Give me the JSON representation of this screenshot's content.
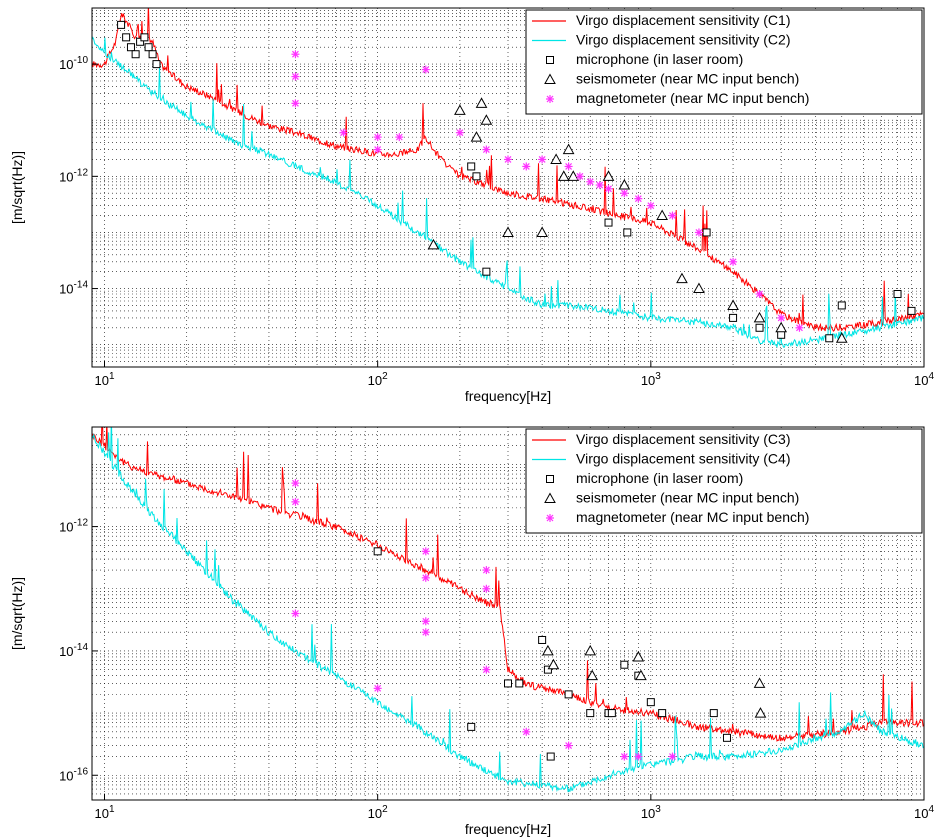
{
  "chart_data": [
    {
      "type": "line",
      "xlabel": "frequency[Hz]",
      "ylabel": "[m/sqrt(Hz)]",
      "xscale": "log",
      "yscale": "log",
      "xlim": [
        9,
        10000
      ],
      "ylim": [
        4e-16,
        1e-09
      ],
      "xticks": [
        10,
        100,
        1000,
        10000
      ],
      "xtick_labels": [
        "10^1",
        "10^2",
        "10^3",
        "10^4"
      ],
      "yticks": [
        1e-14,
        1e-12,
        1e-10
      ],
      "ytick_labels": [
        "10^-14",
        "10^-12",
        "10^-10"
      ],
      "grid": true,
      "legend_position": "top-right",
      "legend": [
        {
          "label": "Virgo displacement sensitivity (C1)",
          "color": "#ff0000",
          "marker": "line"
        },
        {
          "label": "Virgo displacement sensitivity (C2)",
          "color": "#00e5e5",
          "marker": "line"
        },
        {
          "label": "microphone (in laser room)",
          "color": "#000000",
          "marker": "square"
        },
        {
          "label": "seismometer (near MC input bench)",
          "color": "#000000",
          "marker": "triangle"
        },
        {
          "label": "magnetometer (near MC input bench)",
          "color": "#ff33ff",
          "marker": "asterisk"
        }
      ],
      "series": [
        {
          "name": "Virgo displacement sensitivity (C1)",
          "color": "#ff0000",
          "x": [
            9,
            10,
            11,
            11.5,
            12,
            13,
            14,
            15,
            16,
            18,
            20,
            25,
            30,
            40,
            50,
            70,
            100,
            120,
            140,
            150,
            160,
            180,
            200,
            250,
            300,
            400,
            500,
            700,
            1000,
            1500,
            2000,
            2500,
            3000,
            4000,
            5000,
            7000,
            10000
          ],
          "y": [
            1e-10,
            1e-10,
            2.5e-10,
            8e-10,
            6e-10,
            3e-10,
            3e-10,
            2.5e-10,
            1e-10,
            6e-11,
            4e-11,
            2.5e-11,
            1.5e-11,
            8e-12,
            6e-12,
            3.5e-12,
            2.5e-12,
            2.5e-12,
            3e-12,
            5e-12,
            3e-12,
            1.5e-12,
            1e-12,
            7e-13,
            5e-13,
            4e-13,
            3.2e-13,
            2.2e-13,
            1.5e-13,
            5e-14,
            2e-14,
            8e-15,
            3.5e-15,
            2e-15,
            2e-15,
            2.5e-15,
            3.5e-15
          ]
        },
        {
          "name": "Virgo displacement sensitivity (C2)",
          "color": "#00e5e5",
          "x": [
            9,
            10,
            12,
            15,
            20,
            30,
            40,
            50,
            70,
            100,
            150,
            200,
            300,
            400,
            500,
            700,
            1000,
            1500,
            2000,
            2500,
            3000,
            4000,
            5000,
            7000,
            10000
          ],
          "y": [
            3e-10,
            1.5e-10,
            8e-11,
            3e-11,
            1.2e-11,
            4e-12,
            2.5e-12,
            1.5e-12,
            8e-13,
            3e-13,
            8e-14,
            3e-14,
            1e-14,
            5e-15,
            5e-15,
            4e-15,
            3e-15,
            2.5e-15,
            2e-15,
            1.2e-15,
            1e-15,
            1.2e-15,
            1.5e-15,
            2e-15,
            3e-15
          ]
        }
      ],
      "markers": {
        "microphone": {
          "x": [
            11.5,
            12,
            12.5,
            13,
            13.5,
            14,
            14.5,
            15,
            15.5,
            220,
            230,
            250,
            700,
            820,
            1600,
            2000,
            2500,
            3000,
            4500,
            5000,
            8000,
            9000
          ],
          "y": [
            5e-10,
            3e-10,
            2e-10,
            1.5e-10,
            2.5e-10,
            3e-10,
            2e-10,
            1.5e-10,
            1e-10,
            1.5e-12,
            1e-12,
            2e-14,
            1.5e-13,
            1e-13,
            1e-13,
            3e-15,
            2e-15,
            1.5e-15,
            1.3e-15,
            5e-15,
            8e-15,
            4e-15
          ]
        },
        "seismometer": {
          "x": [
            160,
            200,
            230,
            240,
            250,
            300,
            400,
            450,
            480,
            500,
            520,
            700,
            800,
            1100,
            1300,
            1500,
            2000,
            2500,
            3000,
            5000
          ],
          "y": [
            6e-14,
            1.5e-11,
            5e-12,
            2e-11,
            1e-11,
            1e-13,
            1e-13,
            2e-12,
            1e-12,
            3e-12,
            1e-12,
            1e-12,
            7e-13,
            2e-13,
            1.5e-14,
            1e-14,
            5e-15,
            3e-15,
            2e-15,
            1.3e-15
          ]
        },
        "magnetometer": {
          "x": [
            50,
            50,
            50,
            75,
            100,
            100,
            120,
            150,
            200,
            250,
            300,
            350,
            400,
            500,
            550,
            600,
            650,
            700,
            800,
            900,
            1000,
            1200,
            1500,
            2000,
            2500,
            3000,
            3500
          ],
          "y": [
            1.5e-10,
            6e-11,
            2e-11,
            6e-12,
            5e-12,
            3e-12,
            5e-12,
            8e-11,
            6e-12,
            3e-12,
            2e-12,
            1.5e-12,
            2e-12,
            1.5e-12,
            1e-12,
            8e-13,
            7e-13,
            6e-13,
            5e-13,
            4e-13,
            3e-13,
            2e-13,
            1e-13,
            3e-14,
            8e-15,
            3e-15,
            2e-15
          ]
        }
      }
    },
    {
      "type": "line",
      "xlabel": "frequency[Hz]",
      "ylabel": "[m/sqrt(Hz)]",
      "xscale": "log",
      "yscale": "log",
      "xlim": [
        9,
        10000
      ],
      "ylim": [
        4e-17,
        4e-11
      ],
      "xticks": [
        10,
        100,
        1000,
        10000
      ],
      "xtick_labels": [
        "10^1",
        "10^2",
        "10^3",
        "10^4"
      ],
      "yticks": [
        1e-16,
        1e-14,
        1e-12
      ],
      "ytick_labels": [
        "10^-16",
        "10^-14",
        "10^-12"
      ],
      "grid": true,
      "legend_position": "top-right",
      "legend": [
        {
          "label": "Virgo displacement sensitivity (C3)",
          "color": "#ff0000",
          "marker": "line"
        },
        {
          "label": "Virgo displacement sensitivity (C4)",
          "color": "#00e5e5",
          "marker": "line"
        },
        {
          "label": "microphone (in laser room)",
          "color": "#000000",
          "marker": "square"
        },
        {
          "label": "seismometer (near MC input bench)",
          "color": "#000000",
          "marker": "triangle"
        },
        {
          "label": "magnetometer (near MC input bench)",
          "color": "#ff33ff",
          "marker": "asterisk"
        }
      ],
      "series": [
        {
          "name": "Virgo displacement sensitivity (C3)",
          "color": "#ff0000",
          "x": [
            9,
            10,
            12,
            15,
            20,
            30,
            40,
            50,
            70,
            100,
            150,
            200,
            250,
            280,
            300,
            350,
            400,
            500,
            700,
            1000,
            1500,
            2000,
            3000,
            5000,
            7000,
            10000
          ],
          "y": [
            3e-11,
            2e-11,
            1e-11,
            7e-12,
            5e-12,
            3e-12,
            2e-12,
            1.5e-12,
            1e-12,
            5e-13,
            2e-13,
            1e-13,
            6e-14,
            5e-14,
            5e-15,
            3e-15,
            2.5e-15,
            2e-15,
            1.2e-15,
            1e-15,
            6e-16,
            5e-16,
            4e-16,
            5e-16,
            7e-16,
            7e-16
          ]
        },
        {
          "name": "Virgo displacement sensitivity (C4)",
          "color": "#00e5e5",
          "x": [
            9,
            10,
            12,
            15,
            20,
            30,
            40,
            50,
            70,
            100,
            150,
            200,
            250,
            300,
            400,
            500,
            700,
            1000,
            1500,
            2000,
            3000,
            4000,
            5000,
            6000,
            7000,
            10000
          ],
          "y": [
            3e-11,
            1.5e-11,
            5e-12,
            1.5e-12,
            4e-13,
            6e-14,
            2e-14,
            1e-14,
            4e-15,
            1.5e-15,
            5e-16,
            2e-16,
            1.2e-16,
            8e-17,
            7e-17,
            6e-17,
            1e-16,
            1.5e-16,
            2e-16,
            2e-16,
            2.5e-16,
            4e-16,
            5e-16,
            1e-15,
            5e-16,
            3e-16
          ]
        }
      ],
      "markers": {
        "microphone": {
          "x": [
            100,
            220,
            300,
            330,
            400,
            420,
            430,
            500,
            600,
            700,
            720,
            800,
            900,
            1000,
            1100,
            1700,
            1900
          ],
          "y": [
            4e-13,
            6e-16,
            3e-15,
            3e-15,
            1.5e-14,
            5e-15,
            2e-16,
            2e-15,
            1e-15,
            1e-15,
            1e-15,
            6e-15,
            4e-15,
            1.5e-15,
            1e-15,
            1e-15,
            4e-16
          ]
        },
        "seismometer": {
          "x": [
            420,
            440,
            600,
            610,
            900,
            920,
            2500,
            2520
          ],
          "y": [
            1e-14,
            6e-15,
            1e-14,
            4e-15,
            8e-15,
            4e-15,
            3e-15,
            1e-15
          ]
        },
        "magnetometer": {
          "x": [
            50,
            50,
            50,
            100,
            150,
            150,
            150,
            150,
            250,
            250,
            250,
            350,
            500,
            800,
            900,
            1200
          ],
          "y": [
            5e-12,
            2.5e-12,
            4e-14,
            2.5e-15,
            4e-13,
            1.5e-13,
            3e-14,
            2e-14,
            2e-13,
            1e-13,
            5e-15,
            5e-16,
            3e-16,
            2e-16,
            2e-16,
            2e-16
          ]
        }
      }
    }
  ]
}
